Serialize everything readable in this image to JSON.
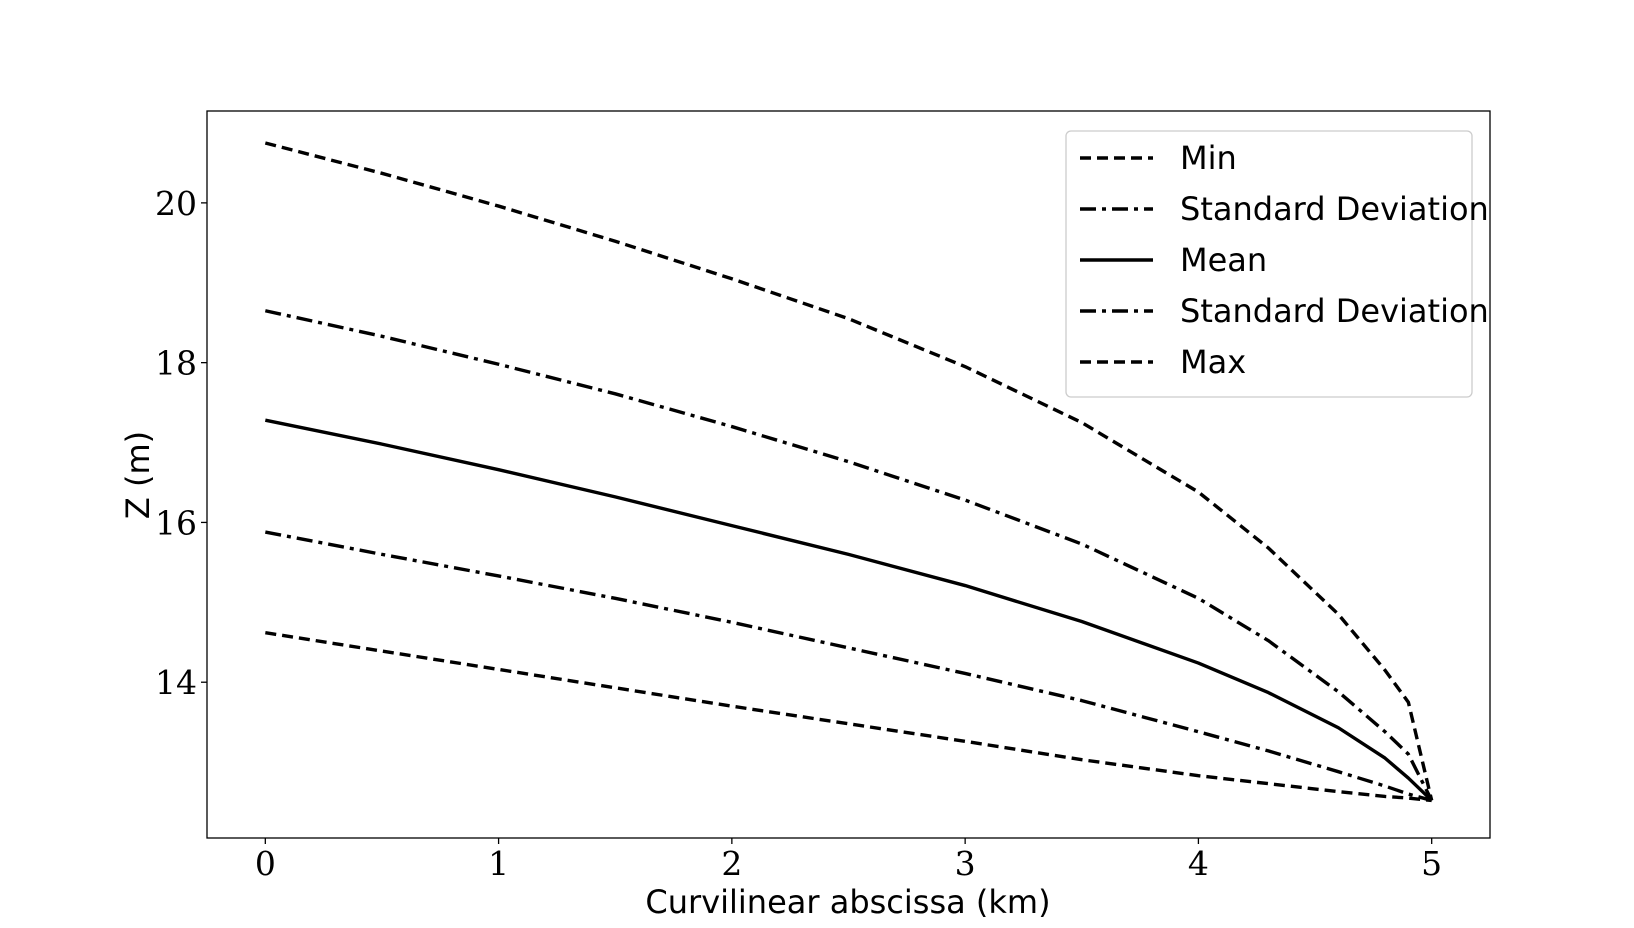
{
  "chart_data": {
    "type": "line",
    "title": "",
    "xlabel": "Curvilinear abscissa (km)",
    "ylabel": "Z (m)",
    "xlim": [
      -0.25,
      5.25
    ],
    "ylim": [
      12.05,
      21.15
    ],
    "xticks": [
      0,
      1,
      2,
      3,
      4,
      5
    ],
    "xtick_labels": [
      "0",
      "1",
      "2",
      "3",
      "4",
      "5"
    ],
    "yticks": [
      14,
      16,
      18,
      20
    ],
    "ytick_labels": [
      "14",
      "16",
      "18",
      "20"
    ],
    "grid": false,
    "legend_position": "top-right",
    "x": [
      0,
      0.5,
      1,
      1.5,
      2,
      2.5,
      3,
      3.5,
      4,
      4.3,
      4.6,
      4.8,
      4.9,
      5
    ],
    "series": [
      {
        "name": "Min",
        "style": "dashed",
        "values": [
          20.75,
          20.37,
          19.96,
          19.52,
          19.05,
          18.55,
          17.95,
          17.25,
          16.38,
          15.68,
          14.85,
          14.15,
          13.75,
          12.52
        ]
      },
      {
        "name": "Standard Deviation",
        "style": "dashdot",
        "values": [
          18.65,
          18.33,
          17.98,
          17.61,
          17.2,
          16.76,
          16.28,
          15.73,
          15.05,
          14.52,
          13.88,
          13.38,
          13.1,
          12.52
        ]
      },
      {
        "name": "Mean",
        "style": "solid",
        "values": [
          17.28,
          16.98,
          16.66,
          16.32,
          15.96,
          15.6,
          15.21,
          14.76,
          14.24,
          13.87,
          13.43,
          13.05,
          12.8,
          12.52
        ]
      },
      {
        "name": "Standard Deviation",
        "style": "dashdot",
        "values": [
          15.88,
          15.6,
          15.33,
          15.05,
          14.75,
          14.43,
          14.11,
          13.77,
          13.38,
          13.14,
          12.88,
          12.7,
          12.6,
          12.52
        ]
      },
      {
        "name": "Max",
        "style": "dashed",
        "values": [
          14.62,
          14.39,
          14.16,
          13.93,
          13.7,
          13.48,
          13.26,
          13.03,
          12.83,
          12.73,
          12.63,
          12.57,
          12.55,
          12.52
        ]
      }
    ]
  }
}
